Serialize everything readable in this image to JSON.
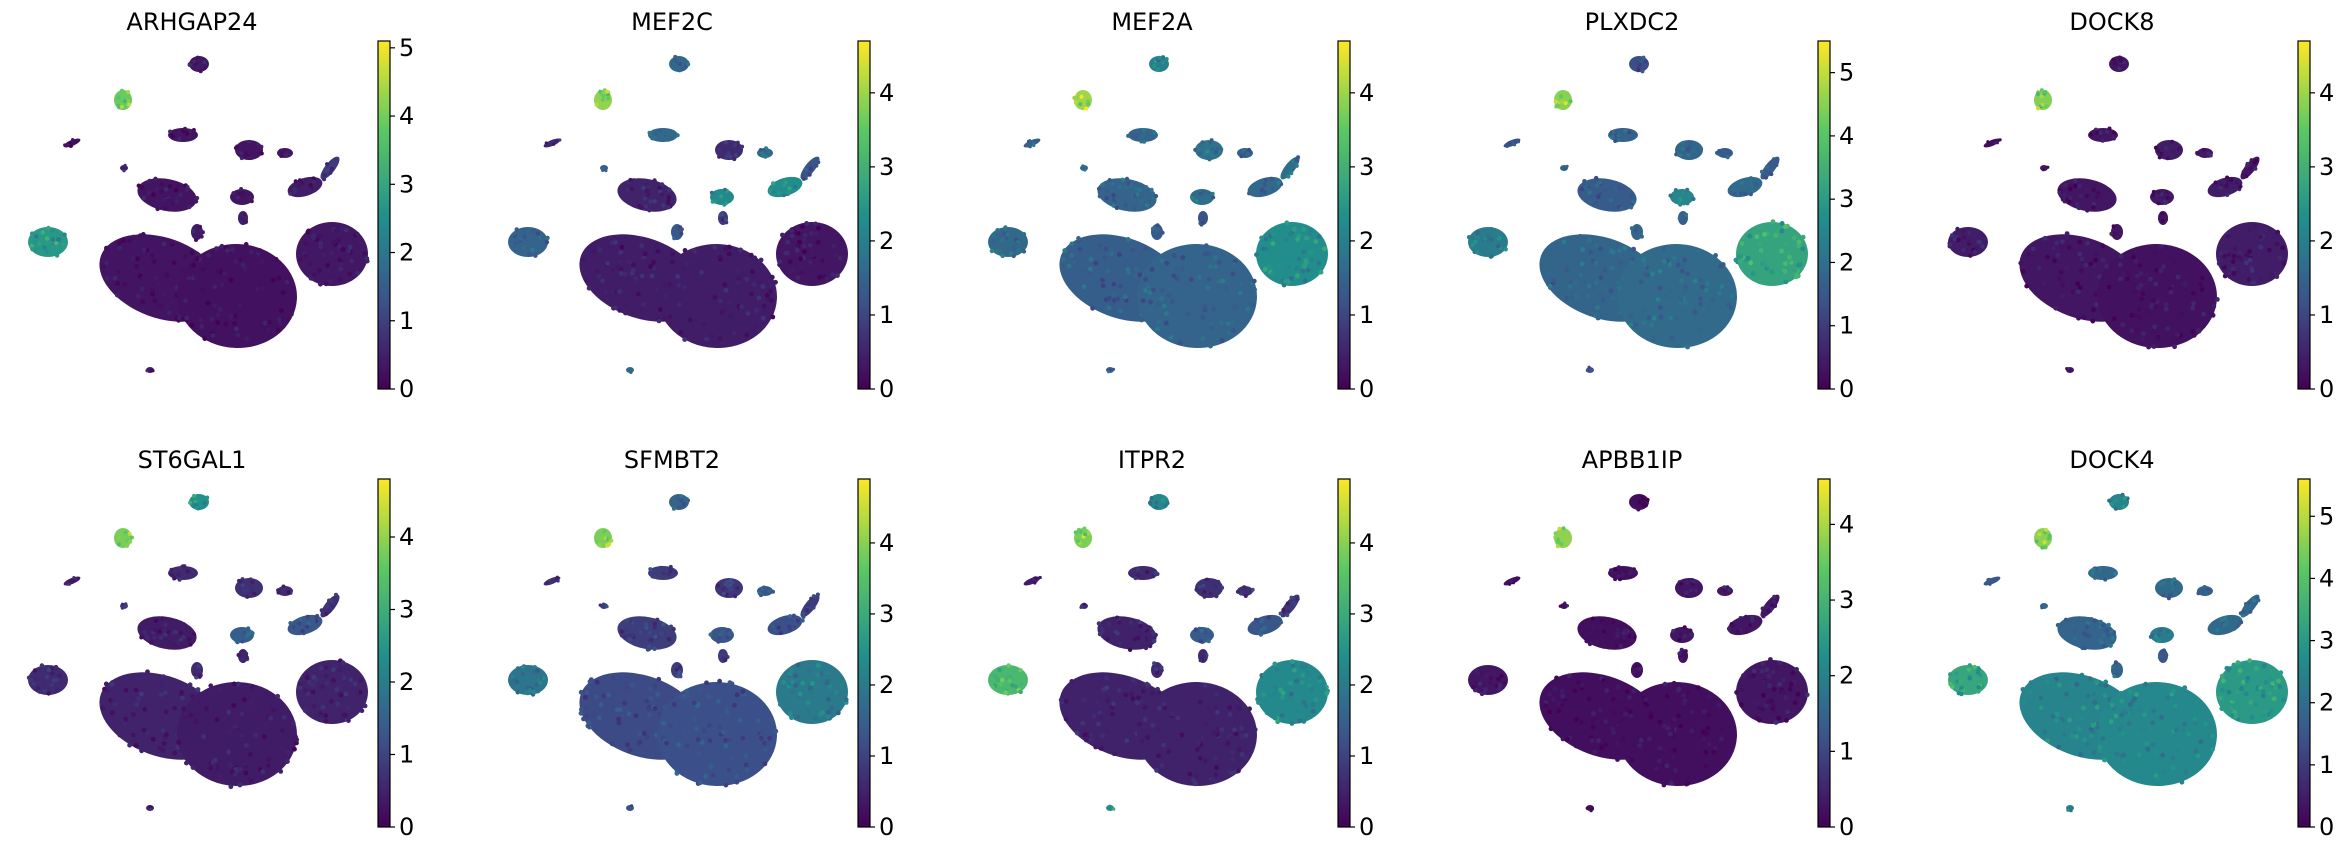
{
  "figure": {
    "description_type": "umap-feature-plots",
    "colormap": "viridis",
    "colormap_stops": [
      "#440154",
      "#3b528b",
      "#21918c",
      "#5ec962",
      "#fde725"
    ]
  },
  "chart_data": {
    "type": "scatter",
    "layout": "2 rows x 5 columns",
    "panels": [
      {
        "title": "ARHGAP24",
        "vmin": 0,
        "vmax": 5.1,
        "ticks": [
          0,
          1,
          2,
          3,
          4,
          5
        ],
        "cluster_levels": [
          0.3,
          0.25,
          0.35,
          0.3,
          0.3,
          0.3,
          0.3,
          0.4,
          0.35,
          0.45,
          0.45,
          0.9,
          0.2,
          0.45,
          2.7,
          0.4,
          3.9,
          0.4
        ]
      },
      {
        "title": "MEF2C",
        "vmin": 0,
        "vmax": 4.7,
        "ticks": [
          0,
          1,
          2,
          3,
          4
        ],
        "cluster_levels": [
          0.4,
          0.4,
          0.3,
          0.5,
          0.6,
          1.6,
          2.2,
          1.3,
          1.6,
          0.8,
          2.3,
          1.2,
          0.6,
          1.3,
          1.5,
          1.6,
          3.9,
          1.6
        ]
      },
      {
        "title": "MEF2A",
        "vmin": 0,
        "vmax": 4.7,
        "ticks": [
          0,
          1,
          2,
          3,
          4
        ],
        "cluster_levels": [
          1.4,
          1.5,
          2.3,
          1.5,
          1.8,
          1.5,
          1.7,
          1.3,
          1.4,
          1.2,
          1.6,
          1.7,
          1.4,
          1.5,
          1.6,
          2.0,
          4.0,
          1.4
        ]
      },
      {
        "title": "PLXDC2",
        "vmin": 0,
        "vmax": 5.5,
        "ticks": [
          0,
          1,
          2,
          3,
          4,
          5
        ],
        "cluster_levels": [
          1.8,
          1.9,
          3.2,
          1.6,
          1.8,
          1.7,
          2.5,
          1.8,
          1.6,
          1.7,
          1.9,
          1.6,
          1.3,
          1.8,
          2.3,
          1.3,
          4.5,
          1.4
        ]
      },
      {
        "title": "DOCK8",
        "vmin": 0,
        "vmax": 4.7,
        "ticks": [
          0,
          1,
          2,
          3,
          4
        ],
        "cluster_levels": [
          0.3,
          0.25,
          0.4,
          0.3,
          0.4,
          0.3,
          0.35,
          0.3,
          0.35,
          0.3,
          0.4,
          0.3,
          0.2,
          0.3,
          0.4,
          0.3,
          3.8,
          0.3
        ]
      },
      {
        "title": "ST6GAL1",
        "vmin": 0,
        "vmax": 4.8,
        "ticks": [
          0,
          1,
          2,
          3,
          4
        ],
        "cluster_levels": [
          0.5,
          0.4,
          0.5,
          0.4,
          0.7,
          0.6,
          1.4,
          0.6,
          0.6,
          0.5,
          1.3,
          0.7,
          0.4,
          0.9,
          0.6,
          2.4,
          3.8,
          0.5
        ]
      },
      {
        "title": "SFMBT2",
        "vmin": 0,
        "vmax": 4.9,
        "ticks": [
          0,
          1,
          2,
          3,
          4
        ],
        "cluster_levels": [
          1.1,
          1.2,
          2.0,
          0.9,
          0.8,
          0.9,
          1.3,
          0.9,
          1.3,
          0.9,
          1.2,
          0.9,
          0.7,
          0.9,
          1.9,
          1.6,
          3.9,
          1.2
        ]
      },
      {
        "title": "ITPR2",
        "vmin": 0,
        "vmax": 4.9,
        "ticks": [
          0,
          1,
          2,
          3,
          4
        ],
        "cluster_levels": [
          0.5,
          0.5,
          2.3,
          0.5,
          0.7,
          0.6,
          1.4,
          0.6,
          0.7,
          0.6,
          1.3,
          0.8,
          0.4,
          0.6,
          3.3,
          2.3,
          3.9,
          2.4
        ]
      },
      {
        "title": "APBB1IP",
        "vmin": 0,
        "vmax": 4.6,
        "ticks": [
          0,
          1,
          2,
          3,
          4
        ],
        "cluster_levels": [
          0.2,
          0.2,
          0.3,
          0.2,
          0.3,
          0.2,
          0.3,
          0.2,
          0.3,
          0.2,
          0.3,
          0.3,
          0.2,
          0.2,
          0.3,
          0.2,
          3.8,
          0.2
        ]
      },
      {
        "title": "DOCK4",
        "vmin": 0,
        "vmax": 5.6,
        "ticks": [
          0,
          1,
          2,
          3,
          4,
          5
        ],
        "cluster_levels": [
          2.5,
          2.6,
          3.0,
          1.8,
          1.9,
          1.9,
          2.3,
          1.8,
          1.7,
          1.5,
          1.9,
          1.9,
          1.5,
          1.7,
          3.3,
          2.5,
          4.6,
          2.4
        ]
      }
    ]
  }
}
